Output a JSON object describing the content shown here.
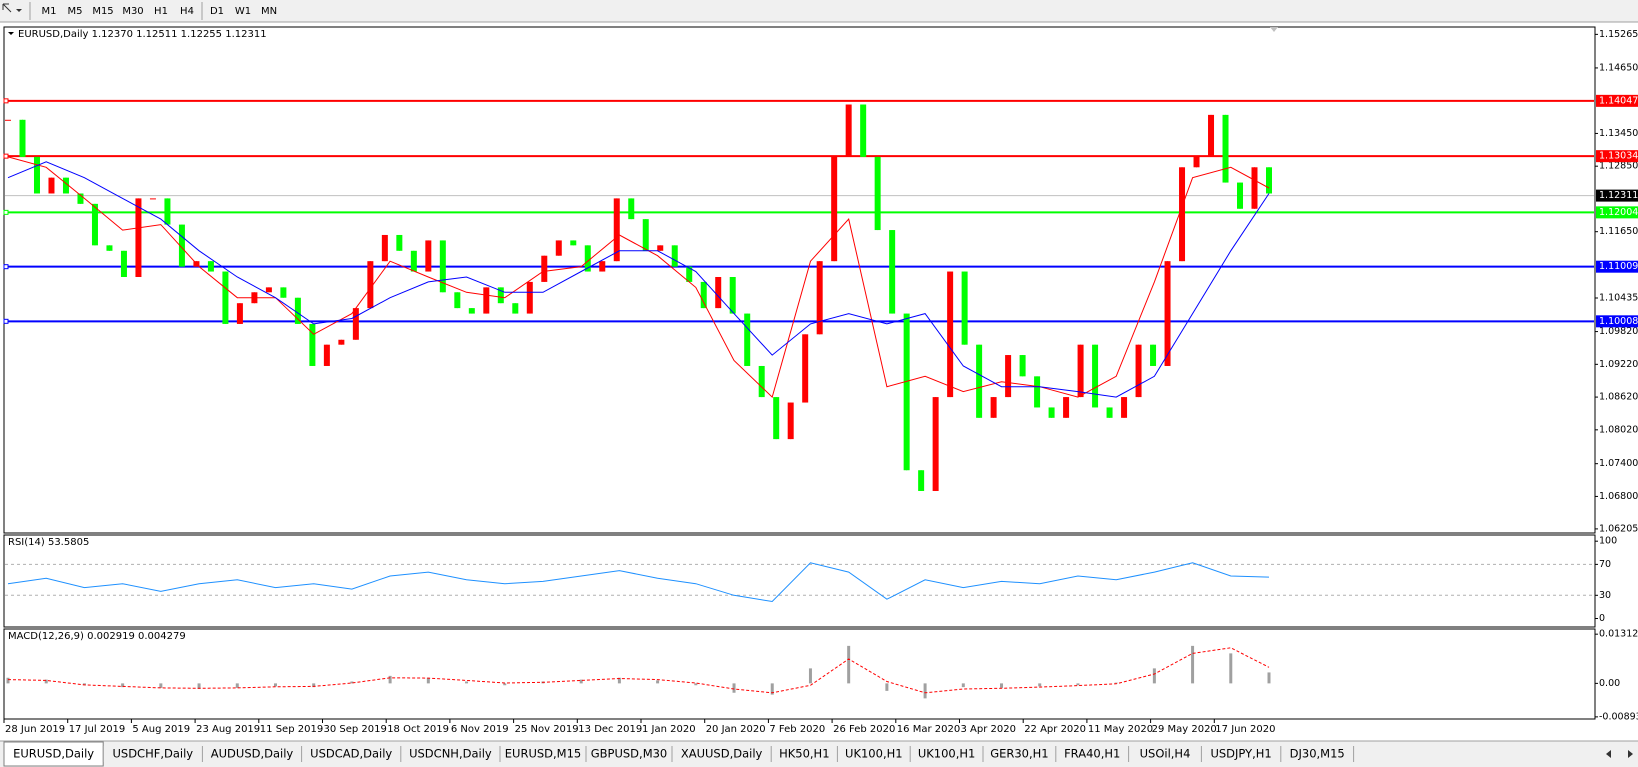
{
  "toolbar": {
    "buttons": [
      "M1",
      "M5",
      "M15",
      "M30",
      "H1",
      "H4",
      "D1",
      "W1",
      "MN"
    ]
  },
  "chart_data": [
    {
      "type": "candlestick",
      "title": "EURUSD,Daily  1.12370 1.12511 1.12255 1.12311",
      "closes": [
        1.137,
        1.1302,
        1.1235,
        1.1264,
        1.1235,
        1.1216,
        1.114,
        1.113,
        1.1082,
        1.1226,
        1.1226,
        1.1178,
        1.1101,
        1.1111,
        1.1092,
        1.0996,
        1.1034,
        1.1054,
        1.1063,
        1.1044,
        1.0996,
        1.0919,
        1.0958,
        1.0967,
        1.1025,
        1.1111,
        1.1159,
        1.113,
        1.1092,
        1.1149,
        1.1054,
        1.1025,
        1.1015,
        1.1063,
        1.1034,
        1.1015,
        1.1073,
        1.1121,
        1.1149,
        1.114,
        1.1092,
        1.1111,
        1.1226,
        1.1188,
        1.113,
        1.114,
        1.1101,
        1.1073,
        1.1025,
        1.1082,
        1.1015,
        1.0919,
        1.0862,
        1.0785,
        1.0852,
        1.0977,
        1.1111,
        1.1302,
        1.1398,
        1.1302,
        1.1168,
        1.1015,
        1.0728,
        1.069,
        1.0862,
        1.1092,
        1.0958,
        1.0824,
        1.0862,
        1.0939,
        1.09,
        1.0843,
        1.0824,
        1.0862,
        1.0958,
        1.0843,
        1.0824,
        1.0862,
        1.0958,
        1.0919,
        1.1111,
        1.1283,
        1.1302,
        1.1379,
        1.1255,
        1.1207,
        1.1283,
        1.1235
      ],
      "up_color": "#ff0000",
      "down_color": "#00ff00",
      "series": [
        {
          "color": "#ff0000",
          "values": [
            1.1302,
            1.1283,
            1.1226,
            1.1168,
            1.1178,
            1.1101,
            1.1044,
            1.1044,
            1.0977,
            1.1015,
            1.1111,
            1.1082,
            1.1054,
            1.1044,
            1.1092,
            1.1101,
            1.1159,
            1.1121,
            1.1063,
            1.0929,
            1.0862,
            1.1111,
            1.1188,
            1.0881,
            1.09,
            1.0872,
            1.089,
            1.0881,
            1.0862,
            1.09,
            1.1073,
            1.1264,
            1.1283,
            1.1245
          ]
        },
        {
          "color": "#0000ff",
          "values": [
            1.1264,
            1.1293,
            1.1264,
            1.1226,
            1.1188,
            1.113,
            1.1082,
            1.1044,
            1.0996,
            1.1006,
            1.1044,
            1.1073,
            1.1082,
            1.1054,
            1.1054,
            1.1092,
            1.113,
            1.113,
            1.1092,
            1.1015,
            1.0939,
            1.0996,
            1.1015,
            1.0996,
            1.1015,
            1.0919,
            1.0881,
            1.0881,
            1.0872,
            1.0862,
            1.09,
            1.1015,
            1.113,
            1.1235
          ]
        }
      ],
      "levels": [
        {
          "value": 1.14047,
          "color": "#ff0000"
        },
        {
          "value": 1.13034,
          "color": "#ff0000"
        },
        {
          "value": 1.12004,
          "color": "#00ff00"
        },
        {
          "value": 1.11009,
          "color": "#0000ff"
        },
        {
          "value": 1.10008,
          "color": "#0000ff"
        }
      ],
      "current_price": 1.12311,
      "ylim": [
        1.0613,
        1.154
      ],
      "yticks": [
        1.15265,
        {
          "value": 1.1465,
          "label": "1.14650"
        },
        {
          "value": 1.1345,
          "label": "1.13450"
        },
        {
          "value": 1.1285,
          "label": "1.12850"
        },
        {
          "value": 1.1165,
          "label": "1.11650"
        },
        1.10435,
        {
          "value": 1.0982,
          "label": "1.09820"
        },
        {
          "value": 1.0922,
          "label": "1.09220"
        },
        {
          "value": 1.0862,
          "label": "1.08620"
        },
        {
          "value": 1.0802,
          "label": "1.08020"
        },
        {
          "value": 1.074,
          "label": "1.07400"
        },
        {
          "value": 1.068,
          "label": "1.06800"
        },
        1.06205
      ],
      "x_tick_labels": [
        "28 Jun 2019",
        "17 Jul 2019",
        "5 Aug 2019",
        "23 Aug 2019",
        "11 Sep 2019",
        "30 Sep 2019",
        "18 Oct 2019",
        "6 Nov 2019",
        "25 Nov 2019",
        "13 Dec 2019",
        "1 Jan 2020",
        "20 Jan 2020",
        "7 Feb 2020",
        "26 Feb 2020",
        "16 Mar 2020",
        "3 Apr 2020",
        "22 Apr 2020",
        "11 May 2020",
        "29 May 2020",
        "17 Jun 2020"
      ]
    },
    {
      "type": "line",
      "title": "RSI(14) 53.5805",
      "series": [
        {
          "color": "#1e90ff",
          "values": [
            45,
            52,
            40,
            45,
            35,
            45,
            50,
            40,
            45,
            38,
            55,
            60,
            50,
            45,
            48,
            55,
            62,
            52,
            45,
            30,
            22,
            72,
            60,
            25,
            50,
            40,
            48,
            45,
            55,
            50,
            60,
            72,
            55,
            53.5805
          ]
        }
      ],
      "levels": [
        70,
        30
      ],
      "ylim": [
        -11,
        108
      ],
      "yticks": [
        100,
        70,
        30,
        0
      ]
    },
    {
      "type": "macd",
      "title": "MACD(12,26,9) 0.002919 0.004279",
      "histogram": {
        "color": "#a0a0a0",
        "values": [
          0.0015,
          0.001,
          -0.0005,
          -0.001,
          -0.0012,
          -0.0015,
          -0.0012,
          -0.0008,
          -0.001,
          0.0005,
          0.002,
          0.0015,
          0.0005,
          -0.0005,
          0.0005,
          0.001,
          0.0015,
          0.0008,
          -0.0005,
          -0.0025,
          -0.003,
          0.004,
          0.01,
          -0.002,
          -0.004,
          -0.001,
          -0.0012,
          -0.0008,
          -0.0005,
          0.0002,
          0.004,
          0.01,
          0.008,
          0.002919
        ]
      },
      "signal": {
        "color": "#ff0000",
        "values": [
          0.001,
          0.0008,
          -0.0004,
          -0.0008,
          -0.0012,
          -0.0013,
          -0.0012,
          -0.0009,
          -0.0008,
          0.0001,
          0.0015,
          0.0014,
          0.0008,
          0.0001,
          0.0003,
          0.0008,
          0.0013,
          0.001,
          0.0001,
          -0.0015,
          -0.0025,
          -0.0005,
          0.0065,
          0.0005,
          -0.0025,
          -0.0015,
          -0.0013,
          -0.001,
          -0.0006,
          -0.0001,
          0.0025,
          0.008,
          0.0095,
          0.004279
        ]
      },
      "ylim": [
        -0.0095,
        0.0145
      ],
      "yticks": [
        0.013121,
        {
          "value": 0,
          "label": "0.00"
        },
        -0.008933
      ]
    }
  ],
  "tabs": [
    "EURUSD,Daily",
    "USDCHF,Daily",
    "AUDUSD,Daily",
    "USDCAD,Daily",
    "USDCNH,Daily",
    "EURUSD,M15",
    "GBPUSD,M30",
    "XAUUSD,Daily",
    "HK50,H1",
    "UK100,H1",
    "UK100,H1",
    "GER30,H1",
    "FRA40,H1",
    "USOil,H4",
    "USDJPY,H1",
    "DJ30,M15"
  ]
}
